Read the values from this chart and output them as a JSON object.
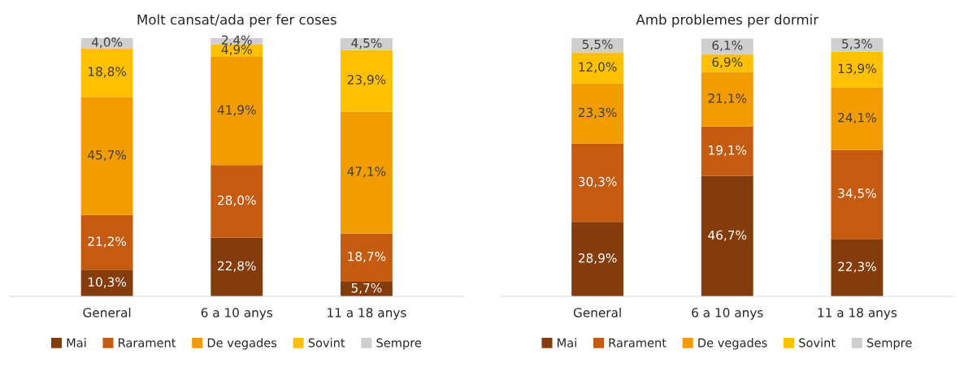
{
  "chart_data": [
    {
      "type": "bar",
      "title": "Molt cansat/ada per fer coses",
      "stacked": true,
      "legend": "bottom",
      "grid": false,
      "tick_labels": "x",
      "categories": [
        "General",
        "6 a 10 anys",
        "11 a 18 anys"
      ],
      "series": [
        {
          "name": "Mai",
          "color": "#843c0c",
          "values": [
            10.3,
            22.8,
            5.7
          ],
          "value_labels": [
            "10,3%",
            "22,8%",
            "5,7%"
          ]
        },
        {
          "name": "Rarament",
          "color": "#c55a11",
          "values": [
            21.2,
            28.0,
            18.7
          ],
          "value_labels": [
            "21,2%",
            "28,0%",
            "18,7%"
          ]
        },
        {
          "name": "De vegades",
          "color": "#f39c00",
          "values": [
            45.7,
            41.9,
            47.1
          ],
          "value_labels": [
            "45,7%",
            "41,9%",
            "47,1%"
          ]
        },
        {
          "name": "Sovint",
          "color": "#ffc000",
          "values": [
            18.8,
            4.9,
            23.9
          ],
          "value_labels": [
            "18,8%",
            "4,9%",
            "23,9%"
          ]
        },
        {
          "name": "Sempre",
          "color": "#d0cece",
          "values": [
            4.0,
            2.4,
            4.5
          ],
          "value_labels": [
            "4,0%",
            "2,4%",
            "4,5%"
          ]
        }
      ]
    },
    {
      "type": "bar",
      "title": "Amb problemes per dormir",
      "stacked": true,
      "legend": "bottom",
      "grid": false,
      "tick_labels": "x",
      "categories": [
        "General",
        "6 a 10 anys",
        "11 a 18 anys"
      ],
      "series": [
        {
          "name": "Mai",
          "color": "#843c0c",
          "values": [
            28.9,
            46.7,
            22.3
          ],
          "value_labels": [
            "28,9%",
            "46,7%",
            "22,3%"
          ]
        },
        {
          "name": "Rarament",
          "color": "#c55a11",
          "values": [
            30.3,
            19.1,
            34.5
          ],
          "value_labels": [
            "30,3%",
            "19,1%",
            "34,5%"
          ]
        },
        {
          "name": "De vegades",
          "color": "#f39c00",
          "values": [
            23.3,
            21.1,
            24.1
          ],
          "value_labels": [
            "23,3%",
            "21,1%",
            "24,1%"
          ]
        },
        {
          "name": "Sovint",
          "color": "#ffc000",
          "values": [
            12.0,
            6.9,
            13.9
          ],
          "value_labels": [
            "12,0%",
            "6,9%",
            "13,9%"
          ]
        },
        {
          "name": "Sempre",
          "color": "#d0cece",
          "values": [
            5.5,
            6.1,
            5.3
          ],
          "value_labels": [
            "5,5%",
            "6,1%",
            "5,3%"
          ]
        }
      ]
    }
  ]
}
